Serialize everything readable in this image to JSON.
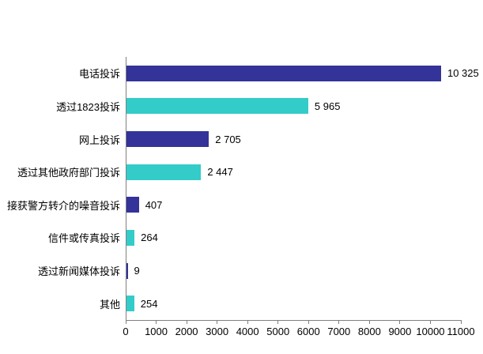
{
  "chart_data": {
    "type": "bar",
    "orientation": "horizontal",
    "title": "",
    "xlabel": "",
    "ylabel": "",
    "categories": [
      "电话投诉",
      "透过1823投诉",
      "网上投诉",
      "透过其他政府部门投诉",
      "接获警方转介的噪音投诉",
      "信件或传真投诉",
      "透过新闻媒体投诉",
      "其他"
    ],
    "values": [
      10325,
      5965,
      2705,
      2447,
      407,
      264,
      9,
      254
    ],
    "value_labels": [
      "10 325",
      "5 965",
      "2 705",
      "2 447",
      "407",
      "264",
      "9",
      "254"
    ],
    "bar_colors": [
      "#333399",
      "#33CCC9",
      "#333399",
      "#33CCC9",
      "#333399",
      "#33CCC9",
      "#333399",
      "#33CCC9"
    ],
    "xlim": [
      0,
      11000
    ],
    "x_ticks": [
      0,
      1000,
      2000,
      3000,
      4000,
      5000,
      6000,
      7000,
      8000,
      9000,
      10000,
      11000
    ],
    "x_tick_labels": [
      "0",
      "1000",
      "2000",
      "3000",
      "4000",
      "5000",
      "6000",
      "7000",
      "8000",
      "9000",
      "10000",
      "11000"
    ],
    "grid": false,
    "legend": "none"
  },
  "colors": {
    "navy": "#333399",
    "teal": "#33CCC9",
    "axis": "#808080",
    "text": "#000000",
    "background": "#ffffff"
  }
}
